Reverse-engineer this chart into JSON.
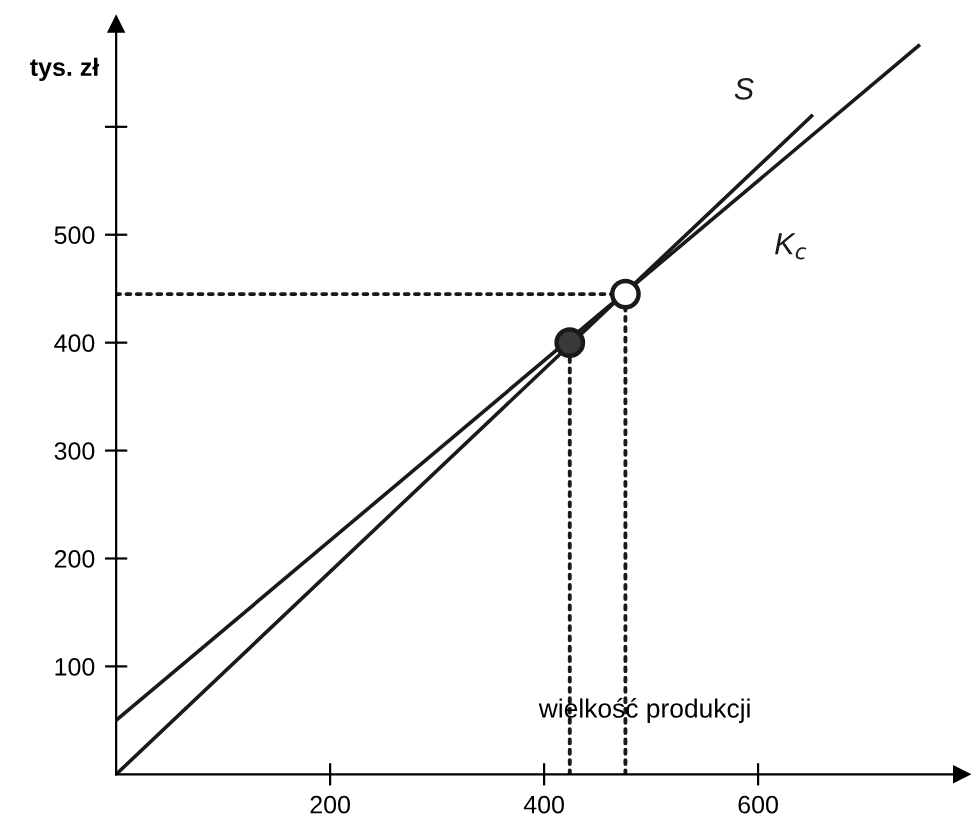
{
  "chart_data": {
    "type": "line",
    "xlabel": "wielkość produkcji",
    "ylabel": "tys. zł",
    "xlim": [
      0,
      790
    ],
    "ylim": [
      0,
      695
    ],
    "xticks": [
      200,
      400,
      600
    ],
    "yticks": [
      100,
      200,
      300,
      400,
      500,
      {
        "value": 600,
        "label": null
      }
    ],
    "grid": false,
    "legend": false,
    "series": [
      {
        "name": "S",
        "color": "#1a1a1a",
        "x": [
          0,
          650
        ],
        "values": [
          0,
          610
        ],
        "line_style": "solid",
        "marker": "none"
      },
      {
        "name": "K$_{c}$",
        "color": "#1a1a1a",
        "x": [
          0,
          750
        ],
        "values": [
          50,
          675
        ],
        "line_style": "solid",
        "marker": "none"
      },
      {
        "color": "#1a1a1a",
        "x": [
          0,
          475
        ],
        "values": [
          445,
          445
        ],
        "line_style": "dotted",
        "marker": "none"
      },
      {
        "color": "#1a1a1a",
        "x": [
          424,
          424
        ],
        "values": [
          0,
          395
        ],
        "line_style": "dotted",
        "marker": "none"
      },
      {
        "color": "#1a1a1a",
        "x": [
          476,
          476
        ],
        "values": [
          0,
          440
        ],
        "line_style": "dotted",
        "marker": "none"
      },
      {
        "type": "scatter",
        "color": "#3a3a3a",
        "x": [
          424
        ],
        "values": [
          400
        ],
        "marker": "circle"
      },
      {
        "type": "scatter",
        "color": "#ffffff",
        "x": [
          476
        ],
        "values": [
          445
        ],
        "marker": "circle"
      }
    ]
  }
}
